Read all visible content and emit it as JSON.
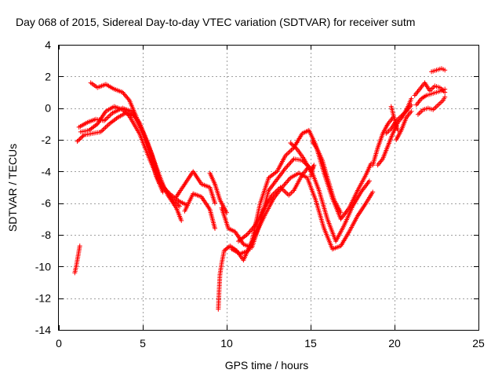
{
  "chart_data": {
    "type": "scatter",
    "title": "Day 068 of 2015, Sidereal Day-to-day VTEC variation (SDTVAR) for receiver sutm",
    "xlabel": "GPS time / hours",
    "ylabel": "SDTVAR / TECUs",
    "xlim": [
      0,
      25
    ],
    "ylim": [
      -14,
      4
    ],
    "xticks": [
      0,
      5,
      10,
      15,
      20,
      25
    ],
    "yticks": [
      -14,
      -12,
      -10,
      -8,
      -6,
      -4,
      -2,
      0,
      2,
      4
    ],
    "xtick_labels": [
      "0",
      "5",
      "10",
      "15",
      "20",
      "25"
    ],
    "ytick_labels": [
      "-14",
      "-12",
      "-10",
      "-8",
      "-6",
      "-4",
      "-2",
      "0",
      "2",
      "4"
    ],
    "grid": true,
    "marker": "+",
    "color": "#ff0000",
    "series": [
      {
        "name": "SDTVAR",
        "tracks": [
          [
            [
              0.95,
              -10.4
            ],
            [
              1.05,
              -9.9
            ],
            [
              1.15,
              -9.3
            ],
            [
              1.25,
              -8.7
            ]
          ],
          [
            [
              1.1,
              -2.1
            ],
            [
              1.5,
              -1.7
            ],
            [
              2.0,
              -1.6
            ],
            [
              2.5,
              -1.5
            ],
            [
              3.0,
              -1.0
            ],
            [
              3.5,
              -0.6
            ],
            [
              4.0,
              -0.3
            ],
            [
              4.5,
              -0.5
            ],
            [
              5.0,
              -1.5
            ],
            [
              5.5,
              -2.8
            ],
            [
              6.0,
              -4.5
            ],
            [
              6.5,
              -5.5
            ],
            [
              7.0,
              -6.3
            ],
            [
              7.3,
              -7.1
            ]
          ],
          [
            [
              1.2,
              -1.2
            ],
            [
              1.7,
              -0.9
            ],
            [
              2.2,
              -0.7
            ],
            [
              2.7,
              -0.8
            ],
            [
              3.2,
              -0.3
            ],
            [
              3.8,
              0.0
            ],
            [
              4.3,
              -0.2
            ],
            [
              4.8,
              -0.9
            ],
            [
              5.3,
              -2.2
            ],
            [
              5.8,
              -3.7
            ],
            [
              6.3,
              -5.1
            ],
            [
              6.8,
              -5.8
            ],
            [
              7.2,
              -6.2
            ]
          ],
          [
            [
              1.3,
              -1.5
            ],
            [
              1.8,
              -1.4
            ],
            [
              2.3,
              -1.0
            ],
            [
              2.8,
              -0.2
            ],
            [
              3.3,
              0.1
            ],
            [
              3.8,
              -0.1
            ],
            [
              4.2,
              -0.5
            ],
            [
              4.8,
              -1.6
            ],
            [
              5.4,
              -3.2
            ],
            [
              6.0,
              -4.7
            ],
            [
              6.6,
              -5.4
            ],
            [
              7.2,
              -5.9
            ],
            [
              7.6,
              -6.1
            ]
          ],
          [
            [
              1.9,
              1.6
            ],
            [
              2.3,
              1.3
            ],
            [
              2.8,
              1.5
            ],
            [
              3.3,
              1.2
            ],
            [
              3.8,
              1.0
            ],
            [
              4.2,
              0.5
            ],
            [
              4.6,
              -0.5
            ],
            [
              5.0,
              -1.6
            ],
            [
              5.4,
              -2.8
            ],
            [
              5.8,
              -4.3
            ],
            [
              6.2,
              -5.3
            ]
          ],
          [
            [
              7.0,
              -5.6
            ],
            [
              7.5,
              -4.8
            ],
            [
              8.0,
              -4.0
            ],
            [
              8.5,
              -4.8
            ],
            [
              9.0,
              -5.0
            ],
            [
              9.3,
              -6.0
            ]
          ],
          [
            [
              7.5,
              -6.5
            ],
            [
              8.0,
              -5.4
            ],
            [
              8.5,
              -5.6
            ],
            [
              9.0,
              -6.4
            ],
            [
              9.3,
              -7.6
            ]
          ],
          [
            [
              9.0,
              -4.1
            ],
            [
              9.3,
              -4.8
            ],
            [
              9.6,
              -5.8
            ],
            [
              10.0,
              -6.6
            ]
          ],
          [
            [
              9.5,
              -12.7
            ],
            [
              9.55,
              -11.5
            ],
            [
              9.6,
              -10.5
            ],
            [
              9.7,
              -9.8
            ],
            [
              9.85,
              -9.0
            ],
            [
              10.2,
              -8.7
            ],
            [
              10.6,
              -9.0
            ],
            [
              11.0,
              -9.6
            ],
            [
              11.5,
              -8.4
            ],
            [
              12.0,
              -6.0
            ],
            [
              12.5,
              -4.4
            ],
            [
              13.0,
              -4.0
            ],
            [
              13.5,
              -3.0
            ],
            [
              14.0,
              -2.5
            ],
            [
              14.5,
              -1.6
            ],
            [
              14.9,
              -1.4
            ],
            [
              15.3,
              -2.3
            ],
            [
              15.8,
              -4.1
            ],
            [
              16.3,
              -5.7
            ],
            [
              16.8,
              -7.0
            ],
            [
              17.3,
              -6.3
            ],
            [
              17.8,
              -5.2
            ],
            [
              18.3,
              -4.2
            ],
            [
              18.6,
              -3.5
            ]
          ],
          [
            [
              9.7,
              -6.3
            ],
            [
              10.1,
              -7.6
            ],
            [
              10.5,
              -7.8
            ],
            [
              11.0,
              -8.6
            ],
            [
              11.5,
              -8.8
            ],
            [
              12.0,
              -7.2
            ],
            [
              12.5,
              -5.2
            ],
            [
              13.0,
              -4.5
            ],
            [
              13.5,
              -3.8
            ],
            [
              14.0,
              -3.2
            ],
            [
              14.5,
              -3.3
            ],
            [
              15.0,
              -3.8
            ],
            [
              15.5,
              -5.2
            ],
            [
              16.0,
              -7.0
            ],
            [
              16.5,
              -8.4
            ],
            [
              17.0,
              -7.4
            ],
            [
              17.5,
              -6.2
            ],
            [
              18.0,
              -5.3
            ],
            [
              18.5,
              -4.6
            ]
          ],
          [
            [
              10.3,
              -8.9
            ],
            [
              10.8,
              -9.2
            ],
            [
              11.3,
              -9.0
            ],
            [
              11.8,
              -7.8
            ],
            [
              12.3,
              -6.7
            ],
            [
              12.8,
              -5.7
            ],
            [
              13.3,
              -5.0
            ],
            [
              13.8,
              -4.4
            ],
            [
              14.3,
              -4.1
            ],
            [
              14.8,
              -4.4
            ],
            [
              15.3,
              -5.8
            ],
            [
              15.8,
              -7.6
            ],
            [
              16.3,
              -8.9
            ],
            [
              16.8,
              -8.7
            ],
            [
              17.3,
              -7.8
            ],
            [
              17.8,
              -6.8
            ],
            [
              18.3,
              -6.0
            ],
            [
              18.7,
              -5.3
            ]
          ],
          [
            [
              10.7,
              -8.4
            ],
            [
              11.2,
              -8.0
            ],
            [
              11.7,
              -7.4
            ],
            [
              12.2,
              -6.4
            ],
            [
              12.7,
              -5.5
            ],
            [
              13.2,
              -5.0
            ],
            [
              13.7,
              -5.5
            ],
            [
              14.0,
              -5.2
            ],
            [
              14.4,
              -4.4
            ],
            [
              14.8,
              -3.8
            ]
          ],
          [
            [
              13.8,
              -2.2
            ],
            [
              14.2,
              -2.6
            ],
            [
              14.6,
              -3.2
            ],
            [
              15.0,
              -4.0
            ],
            [
              15.2,
              -3.6
            ],
            [
              15.0,
              -4.3
            ]
          ],
          [
            [
              15.1,
              -2.1
            ],
            [
              15.4,
              -2.6
            ],
            [
              15.7,
              -3.3
            ],
            [
              16.0,
              -4.4
            ],
            [
              16.4,
              -5.8
            ],
            [
              16.8,
              -6.6
            ]
          ],
          [
            [
              18.7,
              -3.6
            ],
            [
              19.0,
              -2.5
            ],
            [
              19.3,
              -1.6
            ],
            [
              19.6,
              -1.0
            ],
            [
              19.9,
              -0.6
            ]
          ],
          [
            [
              19.0,
              -3.6
            ],
            [
              19.3,
              -3.2
            ],
            [
              19.6,
              -2.4
            ],
            [
              19.9,
              -1.6
            ],
            [
              20.2,
              -0.9
            ],
            [
              20.5,
              -0.5
            ],
            [
              20.8,
              0.1
            ],
            [
              21.0,
              0.6
            ]
          ],
          [
            [
              19.5,
              -1.6
            ],
            [
              19.8,
              -1.3
            ],
            [
              20.1,
              -0.8
            ],
            [
              20.4,
              -0.5
            ],
            [
              20.7,
              -0.2
            ],
            [
              21.0,
              0.2
            ]
          ],
          [
            [
              20.1,
              -2.0
            ],
            [
              20.4,
              -1.4
            ],
            [
              20.7,
              -0.6
            ],
            [
              21.0,
              -0.2
            ]
          ],
          [
            [
              21.2,
              0.8
            ],
            [
              21.5,
              1.2
            ],
            [
              21.8,
              1.6
            ],
            [
              22.1,
              1.1
            ],
            [
              22.4,
              1.4
            ],
            [
              22.7,
              1.3
            ],
            [
              23.0,
              1.0
            ]
          ],
          [
            [
              21.3,
              0.2
            ],
            [
              21.6,
              0.6
            ],
            [
              21.9,
              0.8
            ],
            [
              22.2,
              0.9
            ],
            [
              22.5,
              1.0
            ],
            [
              22.8,
              1.1
            ],
            [
              23.0,
              1.2
            ]
          ],
          [
            [
              21.4,
              -0.4
            ],
            [
              21.7,
              -0.1
            ],
            [
              22.0,
              0.0
            ],
            [
              22.3,
              -0.1
            ],
            [
              22.6,
              0.2
            ],
            [
              22.9,
              0.5
            ],
            [
              23.0,
              0.7
            ]
          ],
          [
            [
              22.2,
              2.3
            ],
            [
              22.5,
              2.4
            ],
            [
              22.8,
              2.5
            ],
            [
              23.0,
              2.4
            ]
          ],
          [
            [
              19.8,
              0.1
            ],
            [
              20.0,
              -0.7
            ],
            [
              20.2,
              -1.4
            ]
          ]
        ]
      }
    ]
  }
}
